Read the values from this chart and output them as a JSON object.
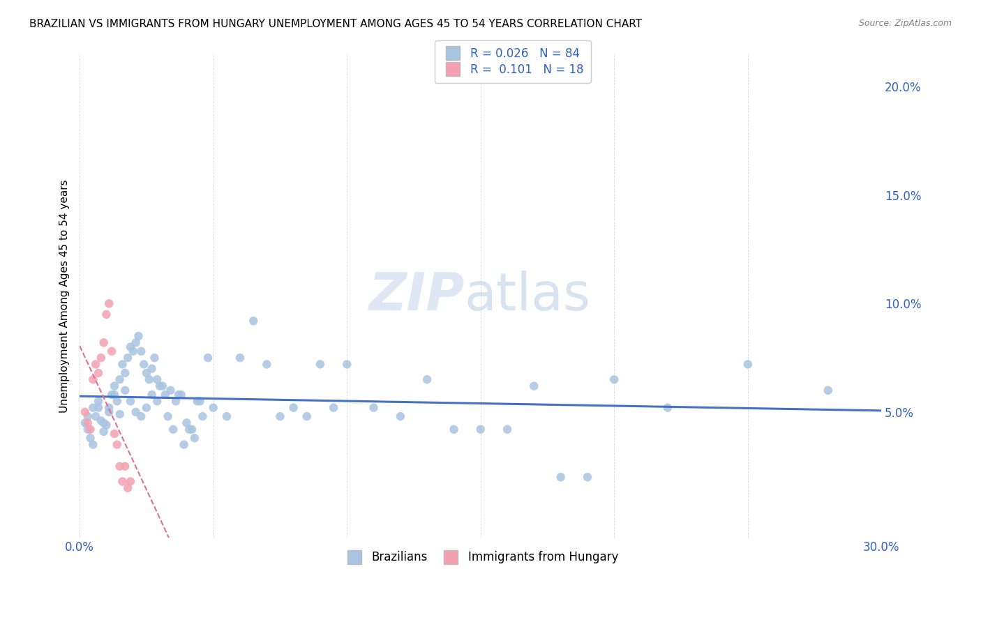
{
  "title": "BRAZILIAN VS IMMIGRANTS FROM HUNGARY UNEMPLOYMENT AMONG AGES 45 TO 54 YEARS CORRELATION CHART",
  "source": "Source: ZipAtlas.com",
  "ylabel": "Unemployment Among Ages 45 to 54 years",
  "xlim": [
    0.0,
    0.3
  ],
  "ylim": [
    -0.008,
    0.215
  ],
  "color_blue": "#a8c4e0",
  "color_pink": "#f4a0b0",
  "line_blue": "#4472c4",
  "line_pink": "#e07090",
  "legend_label1": "R = 0.026   N = 84",
  "legend_label2": "R =  0.101   N = 18",
  "legend_bottom1": "Brazilians",
  "legend_bottom2": "Immigrants from Hungary",
  "blue_scatter_x": [
    0.002,
    0.003,
    0.004,
    0.005,
    0.006,
    0.007,
    0.008,
    0.009,
    0.01,
    0.011,
    0.012,
    0.013,
    0.014,
    0.015,
    0.016,
    0.017,
    0.018,
    0.019,
    0.02,
    0.021,
    0.022,
    0.023,
    0.024,
    0.025,
    0.026,
    0.027,
    0.028,
    0.029,
    0.03,
    0.032,
    0.034,
    0.036,
    0.038,
    0.04,
    0.042,
    0.044,
    0.046,
    0.048,
    0.05,
    0.055,
    0.06,
    0.065,
    0.07,
    0.075,
    0.08,
    0.085,
    0.09,
    0.095,
    0.1,
    0.11,
    0.12,
    0.13,
    0.14,
    0.15,
    0.16,
    0.17,
    0.18,
    0.19,
    0.2,
    0.22,
    0.25,
    0.28,
    0.003,
    0.005,
    0.007,
    0.009,
    0.011,
    0.013,
    0.015,
    0.017,
    0.019,
    0.021,
    0.023,
    0.025,
    0.027,
    0.029,
    0.031,
    0.033,
    0.035,
    0.037,
    0.039,
    0.041,
    0.043,
    0.045
  ],
  "blue_scatter_y": [
    0.045,
    0.042,
    0.038,
    0.035,
    0.048,
    0.052,
    0.046,
    0.041,
    0.044,
    0.05,
    0.058,
    0.062,
    0.055,
    0.049,
    0.072,
    0.068,
    0.075,
    0.08,
    0.078,
    0.082,
    0.085,
    0.078,
    0.072,
    0.068,
    0.065,
    0.07,
    0.075,
    0.065,
    0.062,
    0.058,
    0.06,
    0.055,
    0.058,
    0.045,
    0.042,
    0.055,
    0.048,
    0.075,
    0.052,
    0.048,
    0.075,
    0.092,
    0.072,
    0.048,
    0.052,
    0.048,
    0.072,
    0.052,
    0.072,
    0.052,
    0.048,
    0.065,
    0.042,
    0.042,
    0.042,
    0.062,
    0.02,
    0.02,
    0.065,
    0.052,
    0.072,
    0.06,
    0.048,
    0.052,
    0.055,
    0.045,
    0.052,
    0.058,
    0.065,
    0.06,
    0.055,
    0.05,
    0.048,
    0.052,
    0.058,
    0.055,
    0.062,
    0.048,
    0.042,
    0.058,
    0.035,
    0.042,
    0.038,
    0.055
  ],
  "pink_scatter_x": [
    0.002,
    0.003,
    0.004,
    0.005,
    0.006,
    0.007,
    0.008,
    0.009,
    0.01,
    0.011,
    0.012,
    0.013,
    0.014,
    0.015,
    0.016,
    0.017,
    0.018,
    0.019
  ],
  "pink_scatter_y": [
    0.05,
    0.045,
    0.042,
    0.065,
    0.072,
    0.068,
    0.075,
    0.082,
    0.095,
    0.1,
    0.078,
    0.04,
    0.035,
    0.025,
    0.018,
    0.025,
    0.015,
    0.018
  ]
}
